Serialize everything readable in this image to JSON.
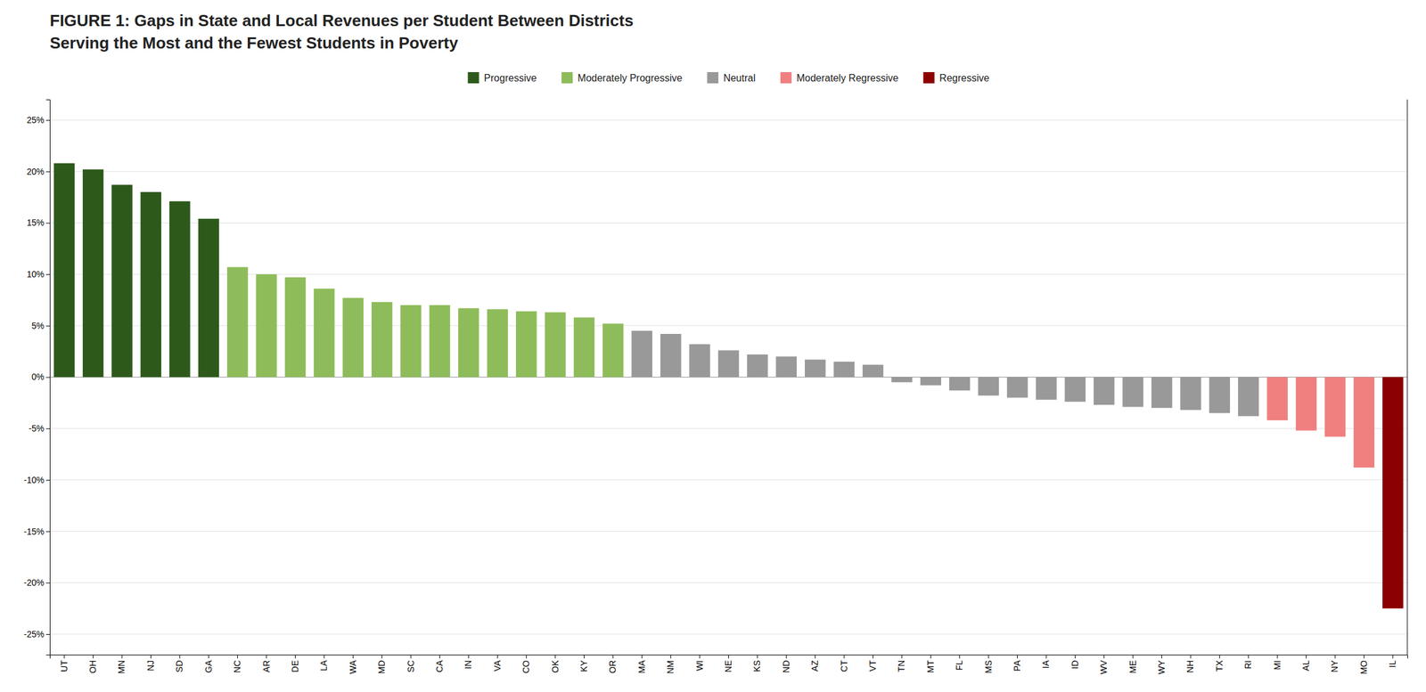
{
  "chart_data": {
    "type": "bar",
    "title": "FIGURE 1: Gaps in State and Local Revenues per Student Between Districts",
    "subtitle": "Serving the Most and the Fewest Students in Poverty",
    "categories": [
      "UT",
      "OH",
      "MN",
      "NJ",
      "SD",
      "GA",
      "NC",
      "AR",
      "DE",
      "LA",
      "WA",
      "MD",
      "SC",
      "CA",
      "IN",
      "VA",
      "CO",
      "OK",
      "KY",
      "OR",
      "MA",
      "NM",
      "WI",
      "NE",
      "KS",
      "ND",
      "AZ",
      "CT",
      "VT",
      "TN",
      "MT",
      "FL",
      "MS",
      "PA",
      "IA",
      "ID",
      "WV",
      "ME",
      "WY",
      "NH",
      "TX",
      "RI",
      "MI",
      "AL",
      "NY",
      "MO",
      "IL"
    ],
    "series": [
      {
        "name": "Progressive",
        "color": "#2d5a1b",
        "values": [
          20.8,
          20.2,
          18.7,
          18.0,
          17.1,
          15.4,
          null,
          null,
          null,
          null,
          null,
          null,
          null,
          null,
          null,
          null,
          null,
          null,
          null,
          null,
          null,
          null,
          null,
          null,
          null,
          null,
          null,
          null,
          null,
          null,
          null,
          null,
          null,
          null,
          null,
          null,
          null,
          null,
          null,
          null,
          null,
          null,
          null,
          null,
          null,
          null,
          null
        ]
      },
      {
        "name": "Moderately Progressive",
        "color": "#8fbc5a",
        "values": [
          null,
          null,
          null,
          null,
          null,
          null,
          10.7,
          10.0,
          9.7,
          8.6,
          7.7,
          7.3,
          7.0,
          7.0,
          6.7,
          6.6,
          6.4,
          6.3,
          5.8,
          5.2,
          null,
          null,
          null,
          null,
          null,
          null,
          null,
          null,
          null,
          null,
          null,
          null,
          null,
          null,
          null,
          null,
          null,
          null,
          null,
          null,
          null,
          null,
          null,
          null,
          null,
          null,
          null
        ]
      },
      {
        "name": "Neutral",
        "color": "#999999",
        "values": [
          null,
          null,
          null,
          null,
          null,
          null,
          null,
          null,
          null,
          null,
          null,
          null,
          null,
          null,
          null,
          null,
          null,
          null,
          null,
          null,
          4.5,
          4.2,
          3.2,
          2.6,
          2.2,
          2.0,
          1.7,
          1.5,
          1.2,
          -0.5,
          -0.8,
          -1.3,
          -1.8,
          -2.0,
          -2.2,
          -2.4,
          -2.7,
          -2.9,
          -3.0,
          -3.2,
          -3.5,
          -3.8,
          null,
          null,
          null,
          null,
          null
        ]
      },
      {
        "name": "Moderately Regressive",
        "color": "#f08080",
        "values": [
          null,
          null,
          null,
          null,
          null,
          null,
          null,
          null,
          null,
          null,
          null,
          null,
          null,
          null,
          null,
          null,
          null,
          null,
          null,
          null,
          null,
          null,
          null,
          null,
          null,
          null,
          null,
          null,
          null,
          null,
          null,
          null,
          null,
          null,
          null,
          null,
          null,
          null,
          null,
          null,
          null,
          null,
          -4.2,
          -5.2,
          -5.8,
          -8.8,
          null
        ]
      },
      {
        "name": "Regressive",
        "color": "#8b0000",
        "values": [
          null,
          null,
          null,
          null,
          null,
          null,
          null,
          null,
          null,
          null,
          null,
          null,
          null,
          null,
          null,
          null,
          null,
          null,
          null,
          null,
          null,
          null,
          null,
          null,
          null,
          null,
          null,
          null,
          null,
          null,
          null,
          null,
          null,
          null,
          null,
          null,
          null,
          null,
          null,
          null,
          null,
          null,
          null,
          null,
          null,
          null,
          -22.5
        ]
      }
    ],
    "ylim": [
      -27,
      27
    ],
    "yticks": [
      {
        "value": -25,
        "label": "-25%"
      },
      {
        "value": -20,
        "label": "-20%"
      },
      {
        "value": -15,
        "label": "-15%"
      },
      {
        "value": -10,
        "label": "-10%"
      },
      {
        "value": -5,
        "label": "-5%"
      },
      {
        "value": 0,
        "label": "0%"
      },
      {
        "value": 5,
        "label": "5%"
      },
      {
        "value": 10,
        "label": "10%"
      },
      {
        "value": 15,
        "label": "15%"
      },
      {
        "value": 20,
        "label": "20%"
      },
      {
        "value": 25,
        "label": "25%"
      }
    ],
    "grid": true,
    "legend": "top"
  }
}
